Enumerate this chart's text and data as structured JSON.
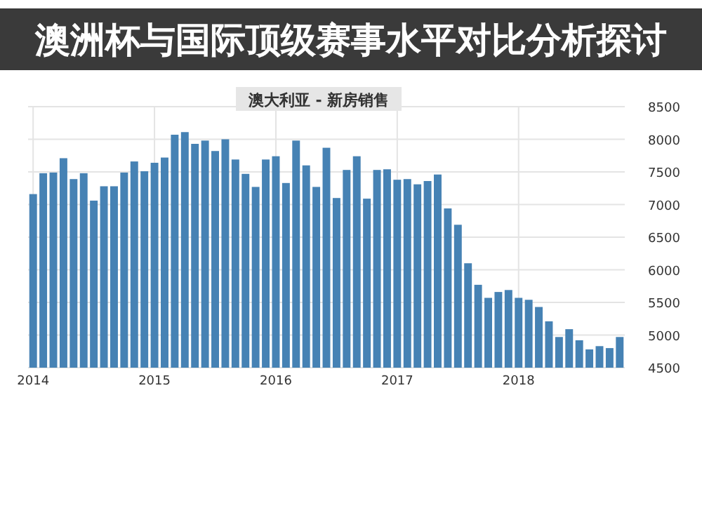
{
  "chart_data": {
    "type": "bar",
    "title": "澳大利亚 - 新房销售",
    "annotations": [
      "澳洲杯与国际顶级赛事水平对比分析探讨"
    ],
    "categories": [
      "2014",
      null,
      null,
      null,
      null,
      null,
      null,
      null,
      null,
      null,
      null,
      null,
      "2015",
      null,
      null,
      null,
      null,
      null,
      null,
      null,
      null,
      null,
      null,
      null,
      "2016",
      null,
      null,
      null,
      null,
      null,
      null,
      null,
      null,
      null,
      null,
      null,
      "2017",
      null,
      null,
      null,
      null,
      null,
      null,
      null,
      null,
      null,
      null,
      null,
      "2018",
      null,
      null,
      null,
      null,
      null,
      null,
      null,
      null,
      null,
      null
    ],
    "values": [
      7160,
      7480,
      7490,
      7710,
      7390,
      7480,
      7060,
      7280,
      7280,
      7490,
      7660,
      7510,
      7640,
      7720,
      8070,
      8110,
      7930,
      7980,
      7820,
      8000,
      7690,
      7470,
      7270,
      7690,
      7740,
      7330,
      7980,
      7600,
      7270,
      7870,
      7100,
      7530,
      7740,
      7090,
      7530,
      7540,
      7380,
      7390,
      7310,
      7360,
      7460,
      6940,
      6690,
      6100,
      5770,
      5570,
      5660,
      5690,
      5570,
      5540,
      5430,
      5210,
      4970,
      5090,
      4920,
      4780,
      4830,
      4800,
      4970
    ],
    "color": "#4682b4",
    "ylim": [
      4500,
      8500
    ],
    "yticks": [
      4500,
      5000,
      5500,
      6000,
      6500,
      7000,
      7500,
      8000,
      8500
    ],
    "grid": true
  }
}
